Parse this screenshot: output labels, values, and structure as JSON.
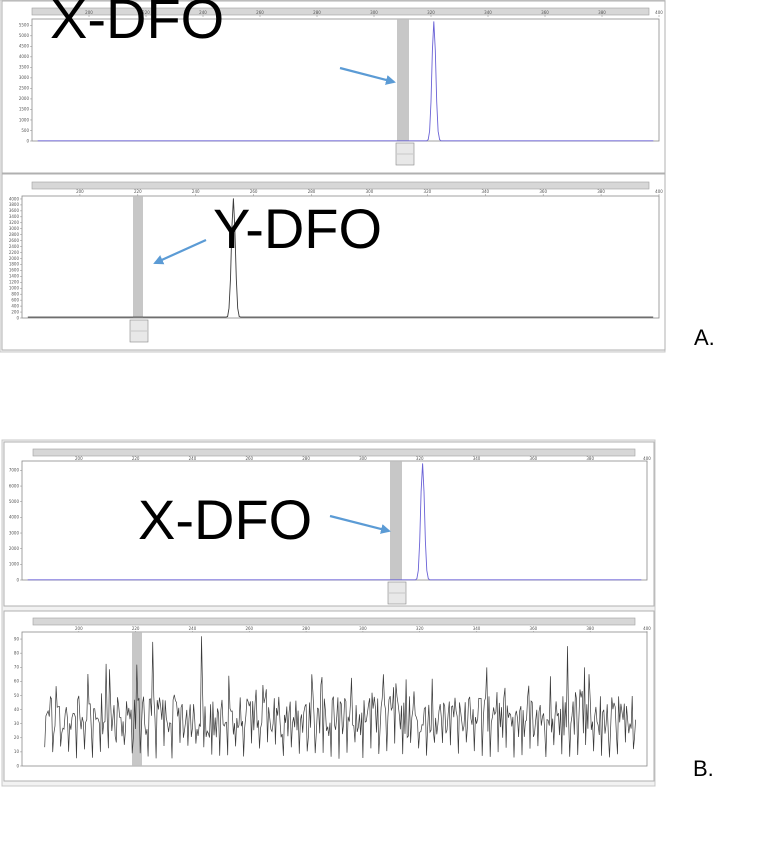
{
  "figure": {
    "panels": [
      {
        "id": "A",
        "letter": "A."
      },
      {
        "id": "B",
        "letter": "B."
      }
    ],
    "colors": {
      "blue_trace": "#6a62d6",
      "black_trace": "#3a3a3a",
      "arrow": "#5b9bd5",
      "window_frame": "#c8c8c8",
      "title_bar": "#d7d7d7",
      "bin_shade": "#bdbdbd",
      "plot_border": "#8a8a8a"
    }
  },
  "chart_data": [
    {
      "type": "line",
      "panel": "A",
      "position": "top",
      "annotation": "X-DFO",
      "series": [
        {
          "color": "#6a62d6",
          "peak_x": 321,
          "baseline": 10
        }
      ],
      "x_ticks": [
        "200",
        "220",
        "240",
        "260",
        "280",
        "300",
        "320",
        "340",
        "360",
        "380",
        "400"
      ],
      "y_ticks": [
        "0",
        "500",
        "1000",
        "1500",
        "2000",
        "2500",
        "3000",
        "3500",
        "4000",
        "4500",
        "5000",
        "5500"
      ],
      "xlim": [
        180,
        400
      ],
      "ylim": [
        0,
        5800
      ]
    },
    {
      "type": "line",
      "panel": "A",
      "position": "bottom",
      "annotation": "Y-DFO",
      "series": [
        {
          "color": "#3a3a3a",
          "peak_x": 253,
          "baseline": 30
        }
      ],
      "x_ticks": [
        "200",
        "220",
        "240",
        "260",
        "280",
        "300",
        "320",
        "340",
        "360",
        "380",
        "400"
      ],
      "y_ticks": [
        "0",
        "200",
        "400",
        "600",
        "800",
        "1000",
        "1200",
        "1400",
        "1600",
        "1800",
        "2000",
        "2200",
        "2400",
        "2600",
        "2800",
        "3000",
        "3200",
        "3400",
        "3600",
        "3800",
        "4000"
      ],
      "xlim": [
        180,
        400
      ],
      "ylim": [
        0,
        4100
      ]
    },
    {
      "type": "line",
      "panel": "B",
      "position": "top",
      "annotation": "X-DFO",
      "series": [
        {
          "color": "#6a62d6",
          "peak_x": 321,
          "baseline": 10
        }
      ],
      "x_ticks": [
        "200",
        "220",
        "240",
        "260",
        "280",
        "300",
        "320",
        "340",
        "360",
        "380",
        "400"
      ],
      "y_ticks": [
        "0",
        "1000",
        "2000",
        "3000",
        "4000",
        "5000",
        "6000",
        "7000"
      ],
      "xlim": [
        180,
        400
      ],
      "ylim": [
        0,
        7600
      ]
    },
    {
      "type": "line",
      "panel": "B",
      "position": "bottom",
      "annotation": "",
      "series": [
        {
          "color": "#3a3a3a",
          "noise": true
        }
      ],
      "x_ticks": [
        "200",
        "220",
        "240",
        "260",
        "280",
        "300",
        "320",
        "340",
        "360",
        "380",
        "400"
      ],
      "y_ticks": [
        "0",
        "10",
        "20",
        "30",
        "40",
        "50",
        "60",
        "70",
        "80",
        "90"
      ],
      "xlim": [
        180,
        400
      ],
      "ylim": [
        0,
        95
      ]
    }
  ]
}
